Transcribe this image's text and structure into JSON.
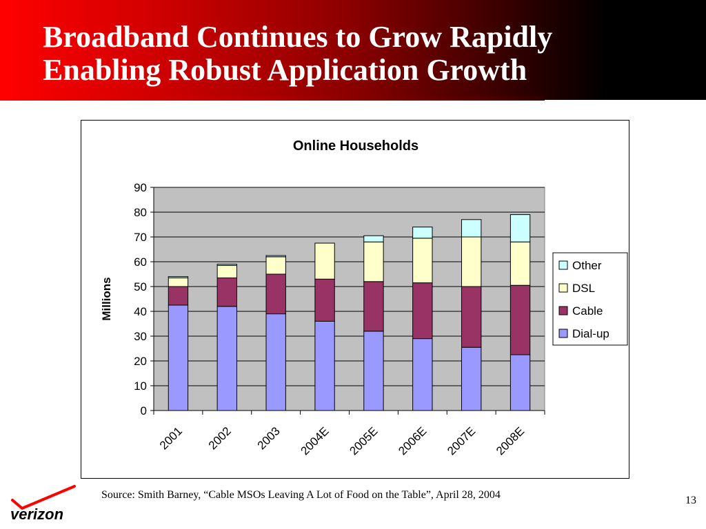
{
  "slide": {
    "title_line1": "Broadband Continues to Grow Rapidly",
    "title_line2": "Enabling Robust Application Growth",
    "source": "Source: Smith Barney, “Cable MSOs Leaving A Lot of Food on the Table”, April 28, 2004",
    "page_number": "13",
    "logo_text": "verizon",
    "brand_color": "#ff0000"
  },
  "chart_data": {
    "type": "bar",
    "stacked": true,
    "title": "Online Households",
    "ylabel": "Millions",
    "xlabel": "",
    "ylim": [
      0,
      90
    ],
    "yticks": [
      0,
      10,
      20,
      30,
      40,
      50,
      60,
      70,
      80,
      90
    ],
    "grid": true,
    "legend_position": "right",
    "categories": [
      "2001",
      "2002",
      "2003",
      "2004E",
      "2005E",
      "2006E",
      "2007E",
      "2008E"
    ],
    "series": [
      {
        "name": "Dial-up",
        "color": "#9999ff",
        "values": [
          42.5,
          42,
          39,
          36,
          32,
          29,
          25.5,
          22.5
        ]
      },
      {
        "name": "Cable",
        "color": "#993366",
        "values": [
          7.5,
          11.5,
          16,
          17,
          20,
          22.5,
          24.5,
          28
        ]
      },
      {
        "name": "DSL",
        "color": "#ffffcc",
        "values": [
          3.5,
          5,
          7,
          14.5,
          16,
          18,
          20,
          17.5
        ]
      },
      {
        "name": "Other",
        "color": "#ccffff",
        "values": [
          0.5,
          0.5,
          0.5,
          0,
          2.5,
          4.5,
          7,
          11
        ]
      }
    ],
    "plot_background": "#c0c0c0"
  }
}
